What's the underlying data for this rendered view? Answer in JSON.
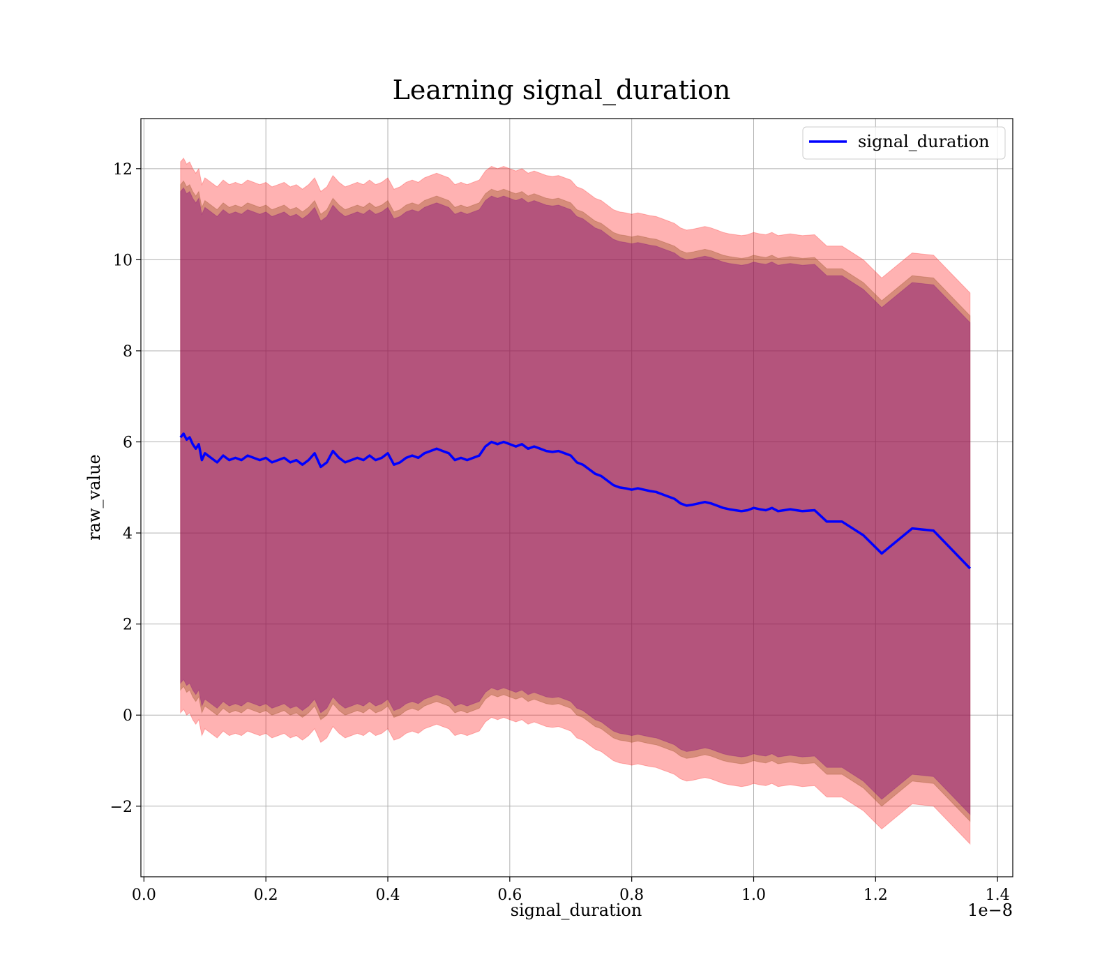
{
  "chart_data": {
    "type": "line",
    "title": "Learning signal_duration",
    "xlabel": "signal_duration",
    "ylabel": "raw_value",
    "x_offset_label": "1e−8",
    "xlim": [
      -0.005,
      1.425
    ],
    "ylim": [
      -3.55,
      13.1
    ],
    "xticks": [
      0.0,
      0.2,
      0.4,
      0.6,
      0.8,
      1.0,
      1.2,
      1.4
    ],
    "xtick_labels": [
      "0.0",
      "0.2",
      "0.4",
      "0.6",
      "0.8",
      "1.0",
      "1.2",
      "1.4"
    ],
    "yticks": [
      -2,
      0,
      2,
      4,
      6,
      8,
      10,
      12
    ],
    "ytick_labels": [
      "−2",
      "0",
      "2",
      "4",
      "6",
      "8",
      "10",
      "12"
    ],
    "grid": true,
    "legend": {
      "position": "upper right",
      "entries": [
        "signal_duration"
      ]
    },
    "colors": {
      "line": "#0000ff",
      "outer_band": "#ff0000",
      "middle_band": "#8b4513",
      "inner_band": "#800080"
    },
    "series": [
      {
        "name": "signal_duration",
        "x": [
          0.06,
          0.065,
          0.07,
          0.075,
          0.08,
          0.085,
          0.09,
          0.095,
          0.1,
          0.11,
          0.12,
          0.13,
          0.14,
          0.15,
          0.16,
          0.17,
          0.18,
          0.19,
          0.2,
          0.21,
          0.22,
          0.23,
          0.24,
          0.25,
          0.26,
          0.27,
          0.28,
          0.29,
          0.3,
          0.31,
          0.32,
          0.33,
          0.34,
          0.35,
          0.36,
          0.37,
          0.38,
          0.39,
          0.4,
          0.41,
          0.42,
          0.43,
          0.44,
          0.45,
          0.46,
          0.47,
          0.48,
          0.49,
          0.5,
          0.51,
          0.52,
          0.53,
          0.54,
          0.55,
          0.56,
          0.57,
          0.58,
          0.59,
          0.6,
          0.61,
          0.62,
          0.63,
          0.64,
          0.65,
          0.66,
          0.67,
          0.68,
          0.69,
          0.7,
          0.71,
          0.72,
          0.73,
          0.74,
          0.75,
          0.76,
          0.77,
          0.78,
          0.79,
          0.8,
          0.81,
          0.82,
          0.83,
          0.84,
          0.85,
          0.86,
          0.87,
          0.88,
          0.89,
          0.9,
          0.91,
          0.92,
          0.93,
          0.94,
          0.95,
          0.96,
          0.97,
          0.98,
          0.99,
          1.0,
          1.01,
          1.02,
          1.03,
          1.04,
          1.05,
          1.06,
          1.07,
          1.08,
          1.1,
          1.12,
          1.145,
          1.18,
          1.21,
          1.26,
          1.295,
          1.355
        ],
        "y": [
          6.1,
          6.18,
          6.05,
          6.1,
          5.95,
          5.85,
          5.95,
          5.6,
          5.75,
          5.65,
          5.55,
          5.7,
          5.6,
          5.65,
          5.6,
          5.7,
          5.65,
          5.6,
          5.65,
          5.55,
          5.6,
          5.65,
          5.55,
          5.6,
          5.5,
          5.6,
          5.75,
          5.45,
          5.55,
          5.8,
          5.65,
          5.55,
          5.6,
          5.65,
          5.6,
          5.7,
          5.6,
          5.65,
          5.75,
          5.5,
          5.55,
          5.65,
          5.7,
          5.65,
          5.75,
          5.8,
          5.85,
          5.8,
          5.75,
          5.6,
          5.65,
          5.6,
          5.65,
          5.7,
          5.9,
          6.0,
          5.95,
          6.0,
          5.95,
          5.9,
          5.95,
          5.85,
          5.9,
          5.85,
          5.8,
          5.78,
          5.8,
          5.75,
          5.7,
          5.55,
          5.5,
          5.4,
          5.3,
          5.25,
          5.15,
          5.05,
          5.0,
          4.98,
          4.95,
          4.98,
          4.95,
          4.92,
          4.9,
          4.85,
          4.8,
          4.75,
          4.65,
          4.6,
          4.62,
          4.65,
          4.68,
          4.65,
          4.6,
          4.55,
          4.52,
          4.5,
          4.48,
          4.5,
          4.55,
          4.52,
          4.5,
          4.55,
          4.48,
          4.5,
          4.52,
          4.5,
          4.48,
          4.5,
          4.25,
          4.25,
          3.95,
          3.55,
          4.1,
          4.05,
          3.22
        ]
      }
    ],
    "bands": [
      {
        "lower_offset": -6.05,
        "upper_offset": 6.05,
        "color": "#ff0000",
        "opacity": 0.3
      },
      {
        "lower_offset": -5.55,
        "upper_offset": 5.55,
        "color": "#8b4513",
        "opacity": 0.35
      },
      {
        "lower_offset": -5.4,
        "upper_offset": 5.4,
        "color": "#800080",
        "opacity": 0.4
      }
    ]
  }
}
